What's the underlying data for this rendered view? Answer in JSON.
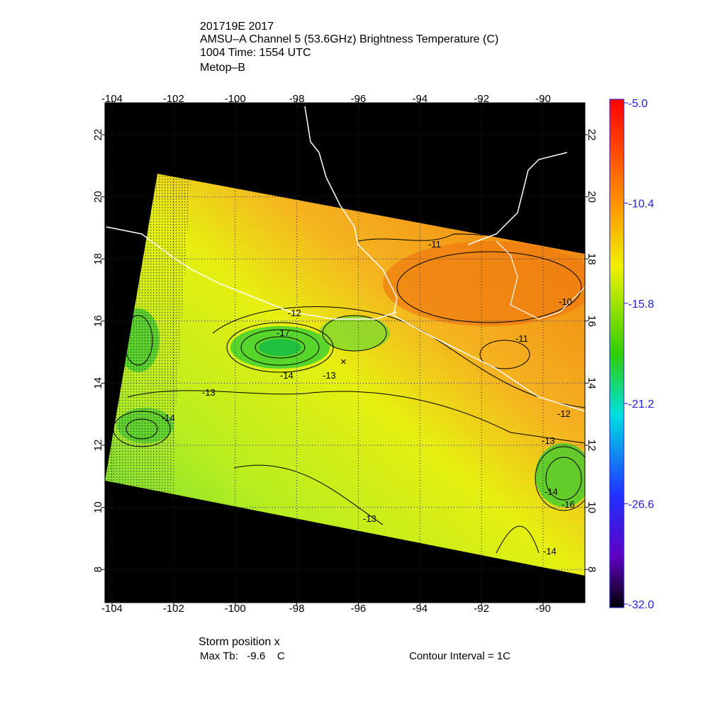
{
  "header": {
    "lines": [
      "201719E 2017",
      "AMSU–A Channel 5 (53.6GHz) Brightness Temperature (C)",
      "1004 Time: 1554 UTC",
      "Metop–B"
    ]
  },
  "map": {
    "lon_ticks": [
      -104,
      -102,
      -100,
      -98,
      -96,
      -94,
      -92,
      -90
    ],
    "lat_ticks": [
      8,
      10,
      12,
      14,
      16,
      18,
      20,
      22
    ],
    "contour_labels": [
      "-17",
      "-13",
      "-14",
      "-13",
      "-14",
      "-13",
      "-11",
      "-10",
      "-12",
      "-13",
      "-14",
      "-16",
      "-14",
      "-11",
      "-12"
    ]
  },
  "colorbar": {
    "ticks": [
      {
        "value": -5,
        "label": "-5.0"
      },
      {
        "value": -10.4,
        "label": "-10.4"
      },
      {
        "value": -15.8,
        "label": "-15.8"
      },
      {
        "value": -21.2,
        "label": "-21.2"
      },
      {
        "value": -26.6,
        "label": "-26.6"
      },
      {
        "value": -32,
        "label": "-32.0"
      }
    ]
  },
  "footer": {
    "storm": "Storm position x",
    "max_tb": "Max Tb:   -9.6    C",
    "interval": "Contour Interval = 1C"
  }
}
